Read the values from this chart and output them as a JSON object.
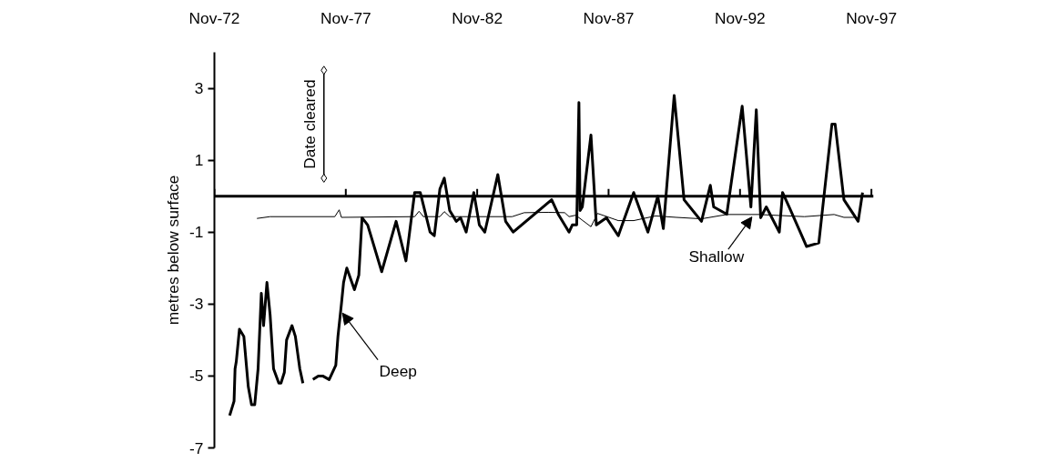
{
  "chart_data": {
    "type": "line",
    "ylabel": "metres below surface",
    "ylim": [
      -7,
      4
    ],
    "yticks": [
      3,
      1,
      -1,
      -3,
      -5,
      -7
    ],
    "xlim": [
      "1972-11",
      "1997-12"
    ],
    "xticks": [
      {
        "value": "1972-11",
        "label": "Nov-72"
      },
      {
        "value": "1977-11",
        "label": "Nov-77"
      },
      {
        "value": "1982-11",
        "label": "Nov-82"
      },
      {
        "value": "1987-11",
        "label": "Nov-87"
      },
      {
        "value": "1992-11",
        "label": "Nov-92"
      },
      {
        "value": "1997-11",
        "label": "Nov-97"
      }
    ],
    "grid": false,
    "marker": "none",
    "line_style": "solid",
    "ref_lines": [
      {
        "axis": "y",
        "value": 0,
        "color": "#000000"
      }
    ],
    "annotations": [
      {
        "text": "Deep",
        "x": "1977-09-15",
        "y": -3.25
      },
      {
        "text": "Shallow",
        "x": "1993-04-15",
        "y": -0.58
      }
    ],
    "series": [
      {
        "color": "#000000",
        "x": [
          "1973-06-01",
          "1973-08-01",
          "1973-08-15",
          "1973-09-01",
          "1973-10-15",
          "1973-12-15",
          "1974-02-15",
          "1974-04-01",
          "1974-05-15",
          "1974-07-01",
          "1974-08-15",
          "1974-09-15",
          "1974-11-01",
          "1974-12-15",
          "1975-02-01",
          "1975-04-15",
          "1975-05-15",
          "1975-07-01",
          "1975-08-01",
          "1975-10-15",
          "1975-12-01",
          "1976-02-01",
          "1976-03-15",
          "1976-05-01",
          "1976-08-01",
          "1976-10-15",
          "1976-12-15",
          "1977-03-15",
          "1977-06-15",
          "1977-07-15",
          "1977-09-01",
          "1977-10-01",
          "1977-11-15",
          "1978-03-01",
          "1978-05-01",
          "1978-06-15",
          "1978-09-01",
          "1979-03-15",
          "1979-10-01",
          "1980-02-15",
          "1980-06-15",
          "1980-09-01",
          "1981-01-15",
          "1981-03-15",
          "1981-06-01",
          "1981-08-01",
          "1981-10-15",
          "1982-01-15",
          "1982-03-15",
          "1982-06-01",
          "1982-09-15",
          "1982-12-01",
          "1983-02-15",
          "1983-08-15",
          "1983-12-01",
          "1984-03-15",
          "1985-09-01",
          "1985-12-01",
          "1986-05-01",
          "1986-06-15",
          "1986-08-15",
          "1986-09-15",
          "1986-10-01",
          "1986-11-01",
          "1987-03-01",
          "1987-05-15",
          "1987-10-01",
          "1988-03-15",
          "1988-10-15",
          "1989-05-01",
          "1989-09-15",
          "1989-12-01",
          "1990-05-01",
          "1990-09-15",
          "1991-05-15",
          "1991-09-15",
          "1991-11-01",
          "1992-05-01",
          "1992-12-01",
          "1993-04-01",
          "1993-06-15",
          "1993-08-15",
          "1993-11-01",
          "1994-05-01",
          "1994-06-15",
          "1994-09-15",
          "1995-05-15",
          "1995-11-01",
          "1996-05-01",
          "1996-06-15",
          "1996-10-15",
          "1997-05-01",
          "1997-07-01"
        ],
        "values": [
          -6.1,
          -5.7,
          -4.8,
          -4.6,
          -3.7,
          -3.9,
          -5.3,
          -5.8,
          -5.8,
          -4.8,
          -2.7,
          -3.6,
          -2.4,
          -3.3,
          -4.8,
          -5.2,
          -5.2,
          -4.9,
          -4.0,
          -3.6,
          -3.9,
          -4.8,
          -5.2,
          null,
          -5.1,
          -5.0,
          -5.0,
          -5.1,
          -4.7,
          -3.9,
          -3.0,
          -2.4,
          -2.0,
          -2.6,
          -2.2,
          -0.6,
          -0.8,
          -2.1,
          -0.7,
          -1.8,
          0.1,
          0.1,
          -1.0,
          -1.1,
          0.2,
          0.5,
          -0.4,
          -0.7,
          -0.6,
          -1.0,
          0.1,
          -0.8,
          -1.0,
          0.6,
          -0.7,
          -1.0,
          -0.1,
          -0.5,
          -1.0,
          -0.8,
          -0.8,
          2.6,
          -0.4,
          -0.3,
          1.7,
          -0.8,
          -0.6,
          -1.1,
          0.1,
          -1.0,
          0.0,
          -0.9,
          2.8,
          -0.1,
          -0.7,
          0.3,
          -0.3,
          -0.5,
          2.5,
          -0.3,
          2.4,
          -0.6,
          -0.3,
          -1.0,
          0.1,
          -0.3,
          -1.4,
          -1.3,
          2.0,
          2.0,
          -0.1,
          -0.7,
          0.1
        ]
      },
      {
        "color": "#000000",
        "x": [
          "1974-06-15",
          "1974-12-15",
          "1977-06-01",
          "1977-08-01",
          "1977-09-01",
          "1980-06-15",
          "1980-08-15",
          "1980-10-15",
          "1981-06-01",
          "1981-08-01",
          "1981-10-15",
          "1984-03-01",
          "1984-08-15",
          "1985-07-15",
          "1986-03-01",
          "1986-05-01",
          "1986-08-01",
          "1987-03-01",
          "1987-06-01",
          "1988-03-15",
          "1988-10-15",
          "1989-08-15",
          "1990-06-01",
          "1991-05-15",
          "1992-05-01",
          "1993-07-15",
          "1995-04-15",
          "1996-06-01",
          "1996-10-15",
          "1997-04-15"
        ],
        "values": [
          -0.62,
          -0.57,
          -0.57,
          -0.38,
          -0.59,
          -0.57,
          -0.42,
          -0.57,
          -0.57,
          -0.43,
          -0.57,
          -0.57,
          -0.46,
          -0.45,
          -0.46,
          -0.57,
          -0.53,
          -0.85,
          -0.48,
          -0.68,
          -0.68,
          -0.55,
          -0.59,
          -0.63,
          -0.51,
          -0.51,
          -0.57,
          -0.51,
          -0.59,
          -0.59
        ]
      },
      {
        "name": "Date cleared",
        "color": "#000000",
        "marker": "diamond",
        "x": [
          "1977-01-01",
          "1977-01-01"
        ],
        "values": [
          0.5,
          3.5
        ]
      }
    ]
  }
}
